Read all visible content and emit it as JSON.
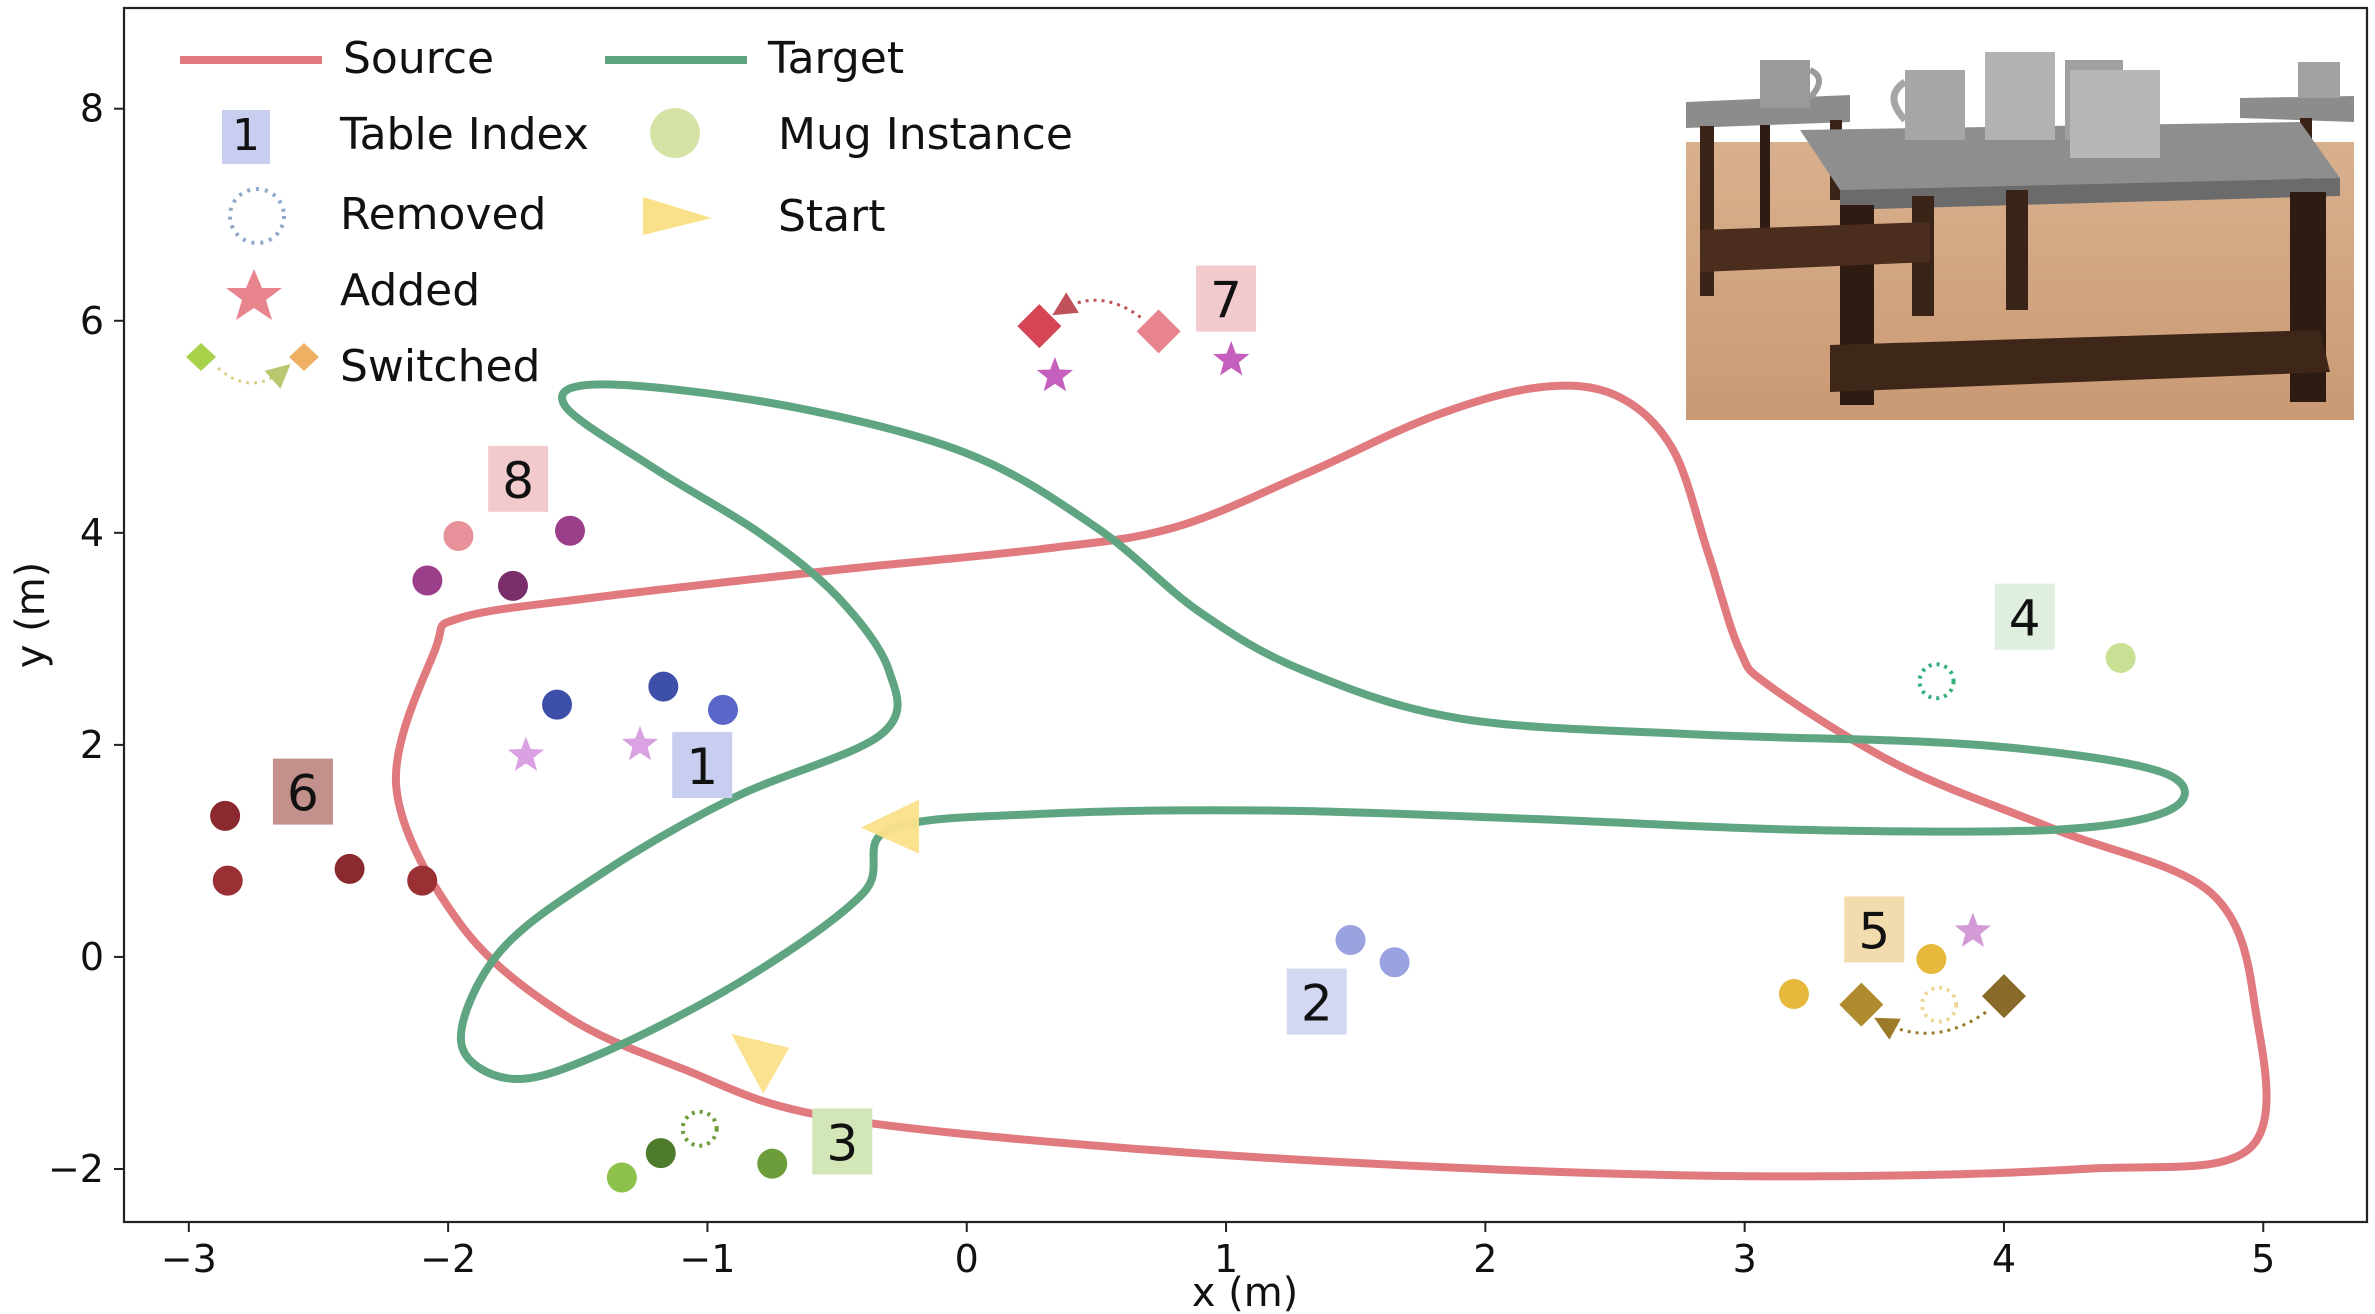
{
  "chart_data": {
    "type": "scatter",
    "xlabel": "x (m)",
    "ylabel": "y (m)",
    "xlim": [
      -3.25,
      5.4
    ],
    "ylim": [
      -2.5,
      8.95
    ],
    "xticks": [
      -3,
      -2,
      -1,
      0,
      1,
      2,
      3,
      4,
      5
    ],
    "yticks": [
      -2,
      0,
      2,
      4,
      6,
      8
    ],
    "tick_labels_x": [
      "−3",
      "−2",
      "−1",
      "0",
      "1",
      "2",
      "3",
      "4",
      "5"
    ],
    "tick_labels_y": [
      "−2",
      "0",
      "2",
      "4",
      "6",
      "8"
    ],
    "grid": false,
    "legend_position": "top-left",
    "legend": [
      {
        "label": "Source",
        "marker": "line",
        "color": "#e07a7e"
      },
      {
        "label": "Target",
        "marker": "line",
        "color": "#5fa582"
      },
      {
        "label": "Table Index",
        "marker": "square-label",
        "color": "#c9cdf0",
        "text": "1"
      },
      {
        "label": "Mug Instance",
        "marker": "circle",
        "color": "#d5e4a6"
      },
      {
        "label": "Removed",
        "marker": "dotted-circle",
        "color": "#8fa8c9"
      },
      {
        "label": "Start",
        "marker": "triangle",
        "color": "#fbe08a"
      },
      {
        "label": "Added",
        "marker": "star",
        "color": "#e8848e"
      },
      {
        "label": "Switched",
        "marker": "diamond-swap",
        "color": "#e8b864"
      }
    ],
    "paths": [
      {
        "name": "Source",
        "color": "#e07a7e",
        "points": [
          [
            -1.95,
            3.2
          ],
          [
            -1.4,
            3.4
          ],
          [
            -0.5,
            3.65
          ],
          [
            0.3,
            3.85
          ],
          [
            0.8,
            4.05
          ],
          [
            1.3,
            4.55
          ],
          [
            1.8,
            5.1
          ],
          [
            2.2,
            5.37
          ],
          [
            2.5,
            5.3
          ],
          [
            2.72,
            4.8
          ],
          [
            2.86,
            3.8
          ],
          [
            2.98,
            2.9
          ],
          [
            3.1,
            2.55
          ],
          [
            3.6,
            1.8
          ],
          [
            4.2,
            1.2
          ],
          [
            4.8,
            0.6
          ],
          [
            4.97,
            -0.5
          ],
          [
            4.95,
            -1.8
          ],
          [
            4.3,
            -2.0
          ],
          [
            3.2,
            -2.07
          ],
          [
            2.0,
            -2.0
          ],
          [
            0.6,
            -1.8
          ],
          [
            -0.55,
            -1.5
          ],
          [
            -1.1,
            -1.05
          ],
          [
            -1.55,
            -0.55
          ],
          [
            -1.95,
            0.3
          ],
          [
            -2.2,
            1.6
          ],
          [
            -2.05,
            2.9
          ],
          [
            -1.95,
            3.2
          ]
        ]
      },
      {
        "name": "Target",
        "color": "#5fa582",
        "points": [
          [
            -0.3,
            1.2
          ],
          [
            0.3,
            1.35
          ],
          [
            1.2,
            1.38
          ],
          [
            2.2,
            1.3
          ],
          [
            3.2,
            1.2
          ],
          [
            4.2,
            1.2
          ],
          [
            4.65,
            1.4
          ],
          [
            4.6,
            1.75
          ],
          [
            3.9,
            2.0
          ],
          [
            2.8,
            2.1
          ],
          [
            1.9,
            2.25
          ],
          [
            1.3,
            2.7
          ],
          [
            0.9,
            3.25
          ],
          [
            0.5,
            4.05
          ],
          [
            0.0,
            4.75
          ],
          [
            -0.7,
            5.2
          ],
          [
            -1.4,
            5.4
          ],
          [
            -1.55,
            5.2
          ],
          [
            -1.2,
            4.6
          ],
          [
            -0.8,
            4.0
          ],
          [
            -0.5,
            3.4
          ],
          [
            -0.3,
            2.7
          ],
          [
            -0.33,
            2.1
          ],
          [
            -0.9,
            1.5
          ],
          [
            -1.4,
            0.8
          ],
          [
            -1.8,
            0.05
          ],
          [
            -1.95,
            -0.8
          ],
          [
            -1.75,
            -1.15
          ],
          [
            -1.4,
            -0.9
          ],
          [
            -0.85,
            -0.2
          ],
          [
            -0.4,
            0.6
          ],
          [
            -0.3,
            1.2
          ]
        ]
      }
    ],
    "start_markers": [
      {
        "path": "Target",
        "x": -0.3,
        "y": 1.22,
        "direction": "left"
      },
      {
        "path": "Source",
        "x": -0.8,
        "y": -0.97,
        "direction": "down-right"
      }
    ],
    "tables": [
      {
        "index": "1",
        "label_x": -1.02,
        "label_y": 1.8,
        "label_color": "#c9cdf0",
        "mugs": [
          {
            "x": -1.58,
            "y": 2.38,
            "color": "#3d4fa8"
          },
          {
            "x": -1.17,
            "y": 2.55,
            "color": "#3d4fa8"
          },
          {
            "x": -0.94,
            "y": 2.33,
            "color": "#5a66c8"
          }
        ],
        "added": [
          {
            "x": -1.7,
            "y": 1.9,
            "color": "#d9a0e2"
          },
          {
            "x": -1.26,
            "y": 2.0,
            "color": "#d9a0e2"
          }
        ]
      },
      {
        "index": "2",
        "label_x": 1.35,
        "label_y": -0.43,
        "label_color": "#d3d7f2",
        "mugs": [
          {
            "x": 1.48,
            "y": 0.16,
            "color": "#9aa3e0"
          },
          {
            "x": 1.65,
            "y": -0.05,
            "color": "#9aa3e0"
          }
        ]
      },
      {
        "index": "3",
        "label_x": -0.48,
        "label_y": -1.75,
        "label_color": "#d2e6b8",
        "mugs": [
          {
            "x": -1.33,
            "y": -2.08,
            "color": "#8ec04c"
          },
          {
            "x": -1.18,
            "y": -1.85,
            "color": "#4e7a2c"
          },
          {
            "x": -0.75,
            "y": -1.95,
            "color": "#6d9c3a"
          }
        ],
        "removed": [
          {
            "x": -1.03,
            "y": -1.62,
            "color": "#6d9c3a"
          }
        ]
      },
      {
        "index": "4",
        "label_x": 4.08,
        "label_y": 3.2,
        "label_color": "#dfeede",
        "mugs": [
          {
            "x": 4.45,
            "y": 2.82,
            "color": "#c8df94"
          }
        ],
        "removed": [
          {
            "x": 3.74,
            "y": 2.6,
            "color": "#33b07a"
          }
        ]
      },
      {
        "index": "5",
        "label_x": 3.5,
        "label_y": 0.25,
        "label_color": "#f2dcae",
        "mugs": [
          {
            "x": 3.19,
            "y": -0.35,
            "color": "#e6b93c"
          },
          {
            "x": 3.72,
            "y": -0.02,
            "color": "#e6b93c"
          }
        ],
        "added": [
          {
            "x": 3.88,
            "y": 0.24,
            "color": "#d39ad8"
          }
        ],
        "removed": [
          {
            "x": 3.75,
            "y": -0.45,
            "color": "#efd79a"
          }
        ],
        "switched": [
          {
            "x": 3.45,
            "y": -0.45,
            "color": "#b08a2e"
          },
          {
            "x": 4.0,
            "y": -0.37,
            "color": "#8a6a2a"
          }
        ]
      },
      {
        "index": "6",
        "label_x": -2.56,
        "label_y": 1.55,
        "label_color": "#c3908c",
        "mugs": [
          {
            "x": -2.86,
            "y": 1.33,
            "color": "#8a2a2e"
          },
          {
            "x": -2.85,
            "y": 0.72,
            "color": "#9a2f34"
          },
          {
            "x": -2.38,
            "y": 0.83,
            "color": "#8a2a2e"
          },
          {
            "x": -2.1,
            "y": 0.72,
            "color": "#9a2f34"
          }
        ]
      },
      {
        "index": "7",
        "label_x": 1.0,
        "label_y": 6.2,
        "label_color": "#f2c9cc",
        "added": [
          {
            "x": 0.34,
            "y": 5.48,
            "color": "#c45fbd"
          },
          {
            "x": 1.02,
            "y": 5.63,
            "color": "#c45fbd"
          }
        ],
        "switched": [
          {
            "x": 0.28,
            "y": 5.95,
            "color": "#d64556"
          },
          {
            "x": 0.74,
            "y": 5.9,
            "color": "#e8848e"
          }
        ]
      },
      {
        "index": "8",
        "label_x": -1.73,
        "label_y": 4.5,
        "label_color": "#f2c9cc",
        "mugs": [
          {
            "x": -1.96,
            "y": 3.97,
            "color": "#e8919a"
          },
          {
            "x": -1.53,
            "y": 4.02,
            "color": "#9b3f8a"
          },
          {
            "x": -2.08,
            "y": 3.55,
            "color": "#9b3f8a"
          },
          {
            "x": -1.75,
            "y": 3.5,
            "color": "#7a2f6a"
          }
        ]
      }
    ],
    "inset_image": {
      "description": "tables with mugs",
      "position": "top-right"
    }
  }
}
